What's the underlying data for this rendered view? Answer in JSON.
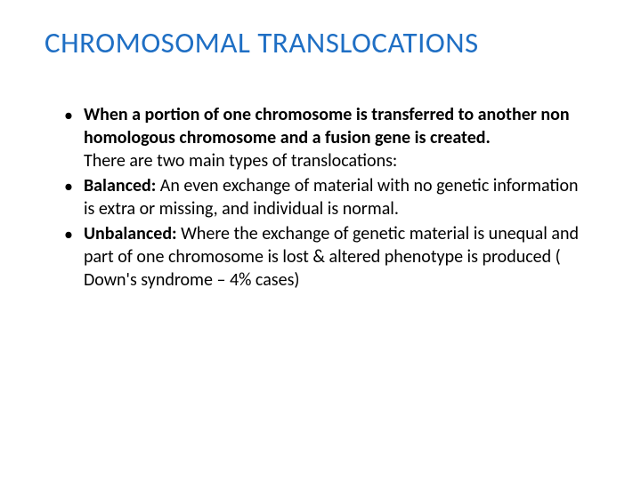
{
  "slide": {
    "title": "CHROMOSOMAL TRANSLOCATIONS",
    "title_color": "#1f6fc4",
    "title_fontsize": 33,
    "body_fontsize": 20,
    "body_color": "#000000",
    "background_color": "#ffffff",
    "bullets": [
      {
        "prefix_bold": "",
        "text_bold": "When a portion of one chromosome is transferred to another non homologous chromosome and a fusion gene is created.",
        "extra_line": "There are two main types of translocations:"
      },
      {
        "prefix_bold": "Balanced:",
        "text_normal": "  An even exchange of material with no genetic information is extra or missing, and individual is normal.",
        "extra_line": ""
      },
      {
        "prefix_bold": "Unbalanced:",
        "text_normal": " Where the exchange of genetic  material is unequal and part of one chromosome is lost & altered phenotype is produced ( Down's syndrome – 4% cases)",
        "extra_line": ""
      }
    ]
  }
}
